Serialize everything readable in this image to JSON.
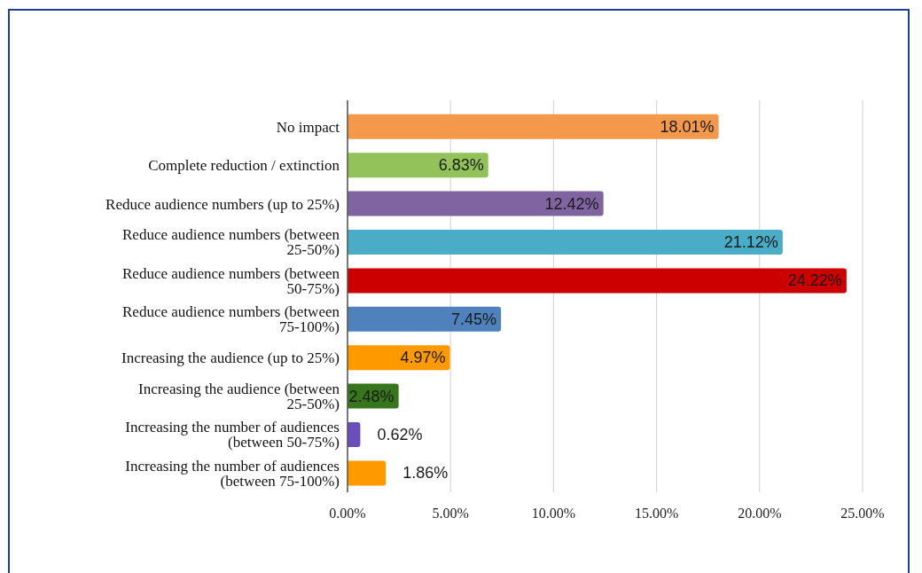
{
  "chart_data": {
    "type": "bar",
    "orientation": "horizontal",
    "categories": [
      "No impact",
      "Complete reduction / extinction",
      "Reduce audience numbers (up to 25%)",
      "Reduce audience numbers (between 25-50%)",
      "Reduce audience numbers (between 50-75%)",
      "Reduce audience numbers (between 75-100%)",
      "Increasing the audience (up to 25%)",
      "Increasing the audience (between 25-50%)",
      "Increasing the number of audiences (between 50-75%)",
      "Increasing the number of audiences (between 75-100%)"
    ],
    "values": [
      18.01,
      6.83,
      12.42,
      21.12,
      24.22,
      7.45,
      4.97,
      2.48,
      0.62,
      1.86
    ],
    "value_labels": [
      "18.01%",
      "6.83%",
      "12.42%",
      "21.12%",
      "24.22%",
      "7.45%",
      "4.97%",
      "2.48%",
      "0.62%",
      "1.86%"
    ],
    "colors": [
      "#f4994c",
      "#93c25a",
      "#8064a2",
      "#4aacc6",
      "#cc0000",
      "#4f81bd",
      "#ff9900",
      "#38761d",
      "#6a4fbb",
      "#ff9900"
    ],
    "xlim": [
      0,
      25
    ],
    "xticks": [
      {
        "value": 0,
        "label": "0.00%"
      },
      {
        "value": 5,
        "label": "5.00%"
      },
      {
        "value": 10,
        "label": "10.00%"
      },
      {
        "value": 15,
        "label": "15.00%"
      },
      {
        "value": 20,
        "label": "20.00%"
      },
      {
        "value": 25,
        "label": "25.00%"
      }
    ],
    "grid": "x"
  }
}
